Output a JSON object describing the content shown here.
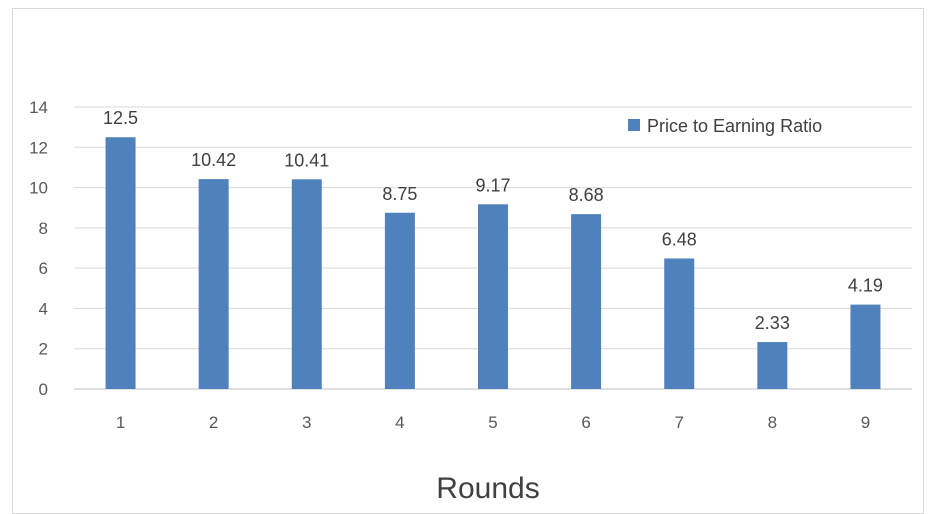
{
  "chart_data": {
    "type": "bar",
    "title": "",
    "xlabel": "Rounds",
    "ylabel": "",
    "categories": [
      "1",
      "2",
      "3",
      "4",
      "5",
      "6",
      "7",
      "8",
      "9"
    ],
    "series": [
      {
        "name": "Price to Earning Ratio",
        "values": [
          12.5,
          10.42,
          10.41,
          8.75,
          9.17,
          8.68,
          6.48,
          2.33,
          4.19
        ],
        "color": "#4f81bd"
      }
    ],
    "data_labels": [
      "12.5",
      "10.42",
      "10.41",
      "8.75",
      "9.17",
      "8.68",
      "6.48",
      "2.33",
      "4.19"
    ],
    "ylim": [
      0,
      14
    ],
    "yticks": [
      0,
      2,
      4,
      6,
      8,
      10,
      12,
      14
    ],
    "grid": true,
    "legend_position": "top-right"
  }
}
